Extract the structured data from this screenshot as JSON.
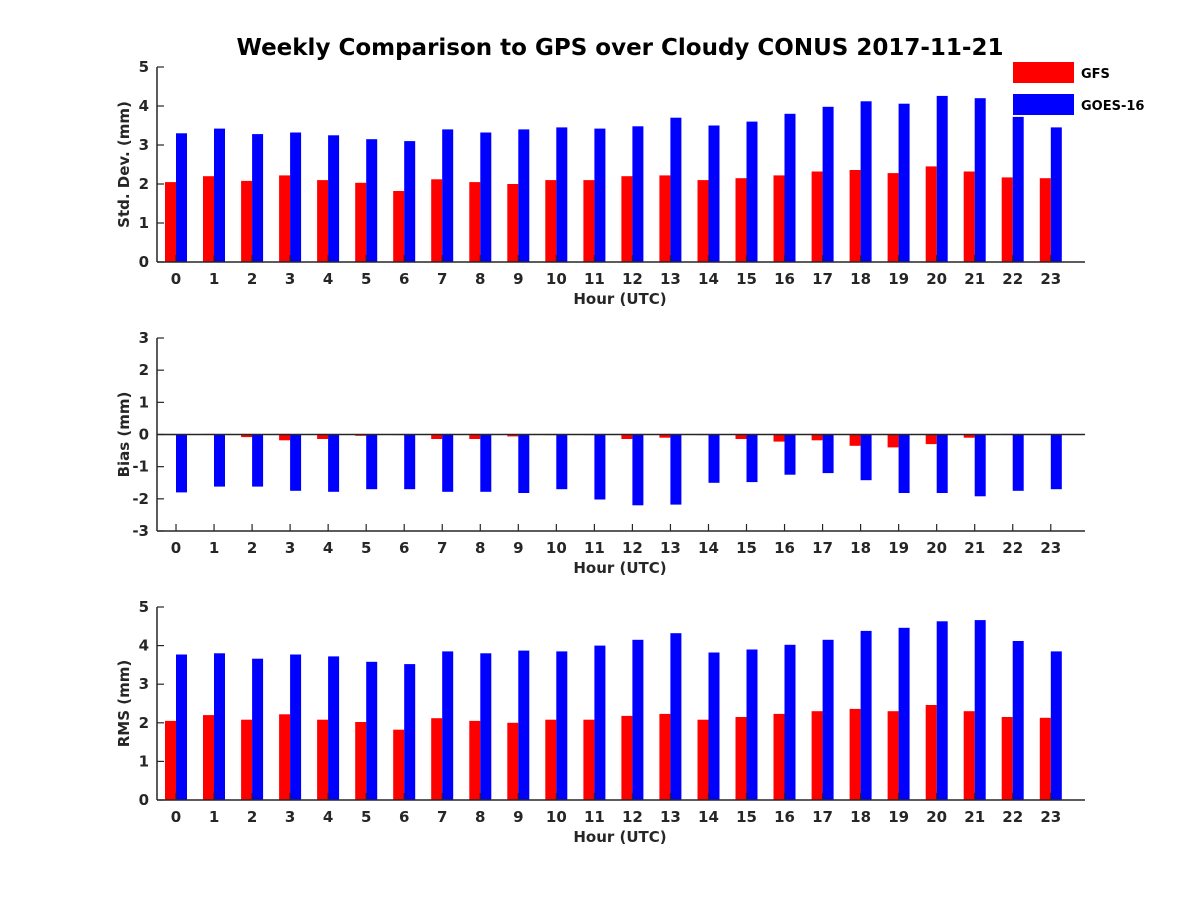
{
  "chart_data": {
    "title": "Weekly Comparison to GPS over Cloudy CONUS 2017-11-21",
    "legend": {
      "placement": "top-right",
      "entries": [
        {
          "name": "GFS",
          "color": "#ff0000"
        },
        {
          "name": "GOES-16",
          "color": "#0000ff"
        }
      ]
    },
    "charts": [
      {
        "type": "bar",
        "ylabel": "Std. Dev. (mm)",
        "xlabel": "Hour (UTC)",
        "ylim": [
          0,
          5
        ],
        "yticks": [
          "0",
          "1",
          "2",
          "3",
          "4",
          "5"
        ],
        "categories": [
          "0",
          "1",
          "2",
          "3",
          "4",
          "5",
          "6",
          "7",
          "8",
          "9",
          "10",
          "11",
          "12",
          "13",
          "14",
          "15",
          "16",
          "17",
          "18",
          "19",
          "20",
          "21",
          "22",
          "23"
        ],
        "series": [
          {
            "name": "GFS",
            "color": "#ff0000",
            "values": [
              2.05,
              2.2,
              2.08,
              2.22,
              2.1,
              2.03,
              1.82,
              2.12,
              2.05,
              2.0,
              2.1,
              2.1,
              2.2,
              2.22,
              2.1,
              2.15,
              2.22,
              2.32,
              2.36,
              2.28,
              2.45,
              2.32,
              2.17,
              2.15
            ]
          },
          {
            "name": "GOES-16",
            "color": "#0000ff",
            "values": [
              3.3,
              3.42,
              3.28,
              3.32,
              3.25,
              3.15,
              3.1,
              3.4,
              3.32,
              3.4,
              3.45,
              3.42,
              3.48,
              3.7,
              3.5,
              3.6,
              3.8,
              3.98,
              4.12,
              4.06,
              4.26,
              4.2,
              3.72,
              3.45
            ]
          }
        ]
      },
      {
        "type": "bar",
        "ylabel": "Bias (mm)",
        "xlabel": "Hour (UTC)",
        "ylim": [
          -3,
          3
        ],
        "yticks": [
          "-3",
          "-2",
          "-1",
          "0",
          "1",
          "2",
          "3"
        ],
        "categories": [
          "0",
          "1",
          "2",
          "3",
          "4",
          "5",
          "6",
          "7",
          "8",
          "9",
          "10",
          "11",
          "12",
          "13",
          "14",
          "15",
          "16",
          "17",
          "18",
          "19",
          "20",
          "21",
          "22",
          "23"
        ],
        "series": [
          {
            "name": "GFS",
            "color": "#ff0000",
            "values": [
              -0.02,
              0.02,
              -0.08,
              -0.18,
              -0.14,
              -0.04,
              -0.02,
              -0.14,
              -0.14,
              -0.06,
              -0.02,
              -0.02,
              -0.14,
              -0.1,
              -0.02,
              -0.14,
              -0.22,
              -0.18,
              -0.35,
              -0.4,
              -0.3,
              -0.1,
              0.02,
              0.02
            ]
          },
          {
            "name": "GOES-16",
            "color": "#0000ff",
            "values": [
              -1.8,
              -1.62,
              -1.62,
              -1.75,
              -1.78,
              -1.7,
              -1.7,
              -1.78,
              -1.78,
              -1.82,
              -1.7,
              -2.02,
              -2.2,
              -2.18,
              -1.5,
              -1.48,
              -1.25,
              -1.2,
              -1.42,
              -1.82,
              -1.82,
              -1.92,
              -1.75,
              -1.7
            ]
          }
        ]
      },
      {
        "type": "bar",
        "ylabel": "RMS (mm)",
        "xlabel": "Hour (UTC)",
        "ylim": [
          0,
          5
        ],
        "yticks": [
          "0",
          "1",
          "2",
          "3",
          "4",
          "5"
        ],
        "categories": [
          "0",
          "1",
          "2",
          "3",
          "4",
          "5",
          "6",
          "7",
          "8",
          "9",
          "10",
          "11",
          "12",
          "13",
          "14",
          "15",
          "16",
          "17",
          "18",
          "19",
          "20",
          "21",
          "22",
          "23"
        ],
        "series": [
          {
            "name": "GFS",
            "color": "#ff0000",
            "values": [
              2.05,
              2.2,
              2.08,
              2.22,
              2.08,
              2.02,
              1.82,
              2.12,
              2.05,
              2.0,
              2.08,
              2.08,
              2.18,
              2.23,
              2.08,
              2.15,
              2.23,
              2.3,
              2.36,
              2.3,
              2.46,
              2.3,
              2.15,
              2.13
            ]
          },
          {
            "name": "GOES-16",
            "color": "#0000ff",
            "values": [
              3.77,
              3.8,
              3.66,
              3.77,
              3.72,
              3.58,
              3.52,
              3.85,
              3.8,
              3.87,
              3.85,
              4.0,
              4.15,
              4.32,
              3.82,
              3.9,
              4.02,
              4.15,
              4.38,
              4.46,
              4.63,
              4.66,
              4.12,
              3.85
            ]
          }
        ]
      }
    ]
  }
}
